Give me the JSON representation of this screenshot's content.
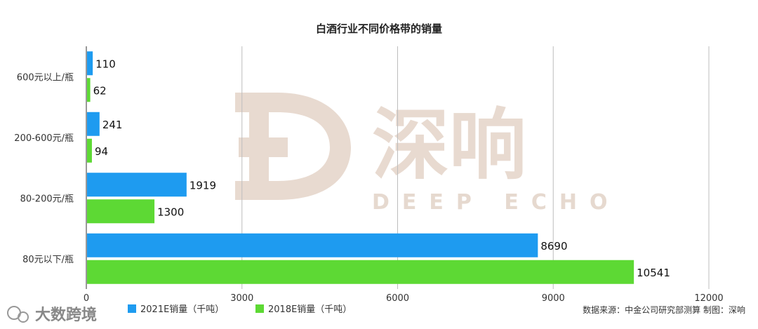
{
  "chart_data": {
    "type": "bar",
    "orientation": "horizontal",
    "title": "白酒行业不同价格带的销量",
    "categories": [
      "600元以上/瓶",
      "200-600元/瓶",
      "80-200元/瓶",
      "80元以下/瓶"
    ],
    "series": [
      {
        "name": "2021E销量（千吨）",
        "color": "#1e9bf0",
        "values": [
          110,
          241,
          1919,
          8690
        ]
      },
      {
        "name": "2018E销量（千吨）",
        "color": "#5dd934",
        "values": [
          62,
          94,
          1300,
          10541
        ]
      }
    ],
    "xlim": [
      0,
      12000
    ],
    "xticks": [
      0,
      3000,
      6000,
      9000,
      12000
    ],
    "grid": "vertical",
    "legend": "bottom"
  },
  "source_note": "数据来源：中金公司研究部测算  制图：深响",
  "watermark": {
    "brand_cn": "深响",
    "brand_en": "DEEP ECHO",
    "corner_text": "大数跨境",
    "color": "#e8dad0"
  }
}
